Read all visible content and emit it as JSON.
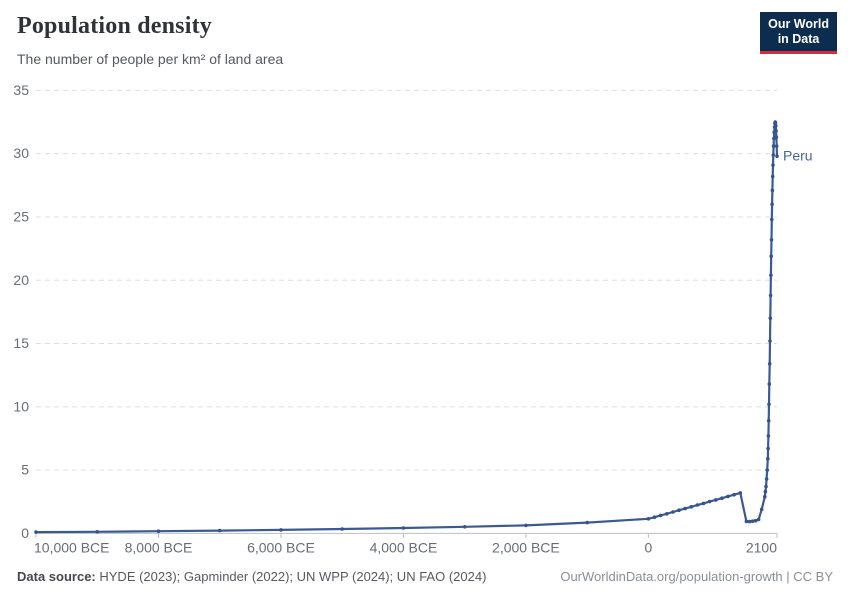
{
  "header": {
    "title": "Population density",
    "subtitle": "The number of people per km² of land area",
    "logo": {
      "line1": "Our World",
      "line2": "in Data",
      "bg_color": "#0d2d4e",
      "bar_color": "#cf303e"
    }
  },
  "footer": {
    "source_label": "Data source:",
    "source_text": "HYDE (2023); Gapminder (2022); UN WPP (2024); UN FAO (2024)",
    "link_text": "OurWorldinData.org/population-growth | CC BY"
  },
  "chart_data": {
    "type": "line",
    "title": "Population density",
    "subtitle": "The number of people per km² of land area",
    "entity": "Peru",
    "unit": "people per km² of land area",
    "line_color": "#3c5a92",
    "grid": true,
    "legend_position": "end-of-line-label",
    "x_axis": {
      "min": -10000,
      "max": 2100,
      "ticks": [
        {
          "year": -10000,
          "label": "10,000 BCE"
        },
        {
          "year": -8000,
          "label": "8,000 BCE"
        },
        {
          "year": -6000,
          "label": "6,000 BCE"
        },
        {
          "year": -4000,
          "label": "4,000 BCE"
        },
        {
          "year": -2000,
          "label": "2,000 BCE"
        },
        {
          "year": 0,
          "label": "0"
        },
        {
          "year": 2100,
          "label": "2100"
        }
      ]
    },
    "y_axis": {
      "min": 0,
      "max": 35,
      "ticks": [
        0,
        5,
        10,
        15,
        20,
        25,
        30,
        35
      ]
    },
    "series": [
      {
        "name": "Peru",
        "points": [
          [
            -10000,
            0.1
          ],
          [
            -9000,
            0.13
          ],
          [
            -8000,
            0.17
          ],
          [
            -7000,
            0.22
          ],
          [
            -6000,
            0.28
          ],
          [
            -5000,
            0.35
          ],
          [
            -4000,
            0.43
          ],
          [
            -3000,
            0.52
          ],
          [
            -2000,
            0.63
          ],
          [
            -1000,
            0.85
          ],
          [
            0,
            1.15
          ],
          [
            100,
            1.28
          ],
          [
            200,
            1.42
          ],
          [
            300,
            1.55
          ],
          [
            400,
            1.69
          ],
          [
            500,
            1.83
          ],
          [
            600,
            1.96
          ],
          [
            700,
            2.1
          ],
          [
            800,
            2.24
          ],
          [
            900,
            2.37
          ],
          [
            1000,
            2.51
          ],
          [
            1100,
            2.65
          ],
          [
            1200,
            2.78
          ],
          [
            1300,
            2.92
          ],
          [
            1400,
            3.06
          ],
          [
            1500,
            3.2
          ],
          [
            1600,
            0.95
          ],
          [
            1650,
            0.93
          ],
          [
            1700,
            0.96
          ],
          [
            1750,
            1.0
          ],
          [
            1800,
            1.1
          ],
          [
            1850,
            1.9
          ],
          [
            1900,
            2.9
          ],
          [
            1910,
            3.3
          ],
          [
            1920,
            3.7
          ],
          [
            1930,
            4.3
          ],
          [
            1940,
            5.0
          ],
          [
            1950,
            5.9
          ],
          [
            1955,
            6.7
          ],
          [
            1960,
            7.7
          ],
          [
            1965,
            8.9
          ],
          [
            1970,
            10.2
          ],
          [
            1975,
            11.8
          ],
          [
            1980,
            13.4
          ],
          [
            1985,
            15.2
          ],
          [
            1990,
            17.0
          ],
          [
            1995,
            18.8
          ],
          [
            2000,
            20.4
          ],
          [
            2005,
            21.9
          ],
          [
            2010,
            23.2
          ],
          [
            2015,
            24.8
          ],
          [
            2020,
            26.0
          ],
          [
            2025,
            27.1
          ],
          [
            2030,
            28.2
          ],
          [
            2035,
            29.1
          ],
          [
            2040,
            29.9
          ],
          [
            2045,
            30.6
          ],
          [
            2050,
            31.2
          ],
          [
            2055,
            31.7
          ],
          [
            2060,
            32.1
          ],
          [
            2065,
            32.4
          ],
          [
            2070,
            32.5
          ],
          [
            2075,
            32.45
          ],
          [
            2080,
            32.2
          ],
          [
            2085,
            31.8
          ],
          [
            2090,
            31.3
          ],
          [
            2095,
            30.6
          ],
          [
            2100,
            29.8
          ]
        ]
      }
    ]
  }
}
